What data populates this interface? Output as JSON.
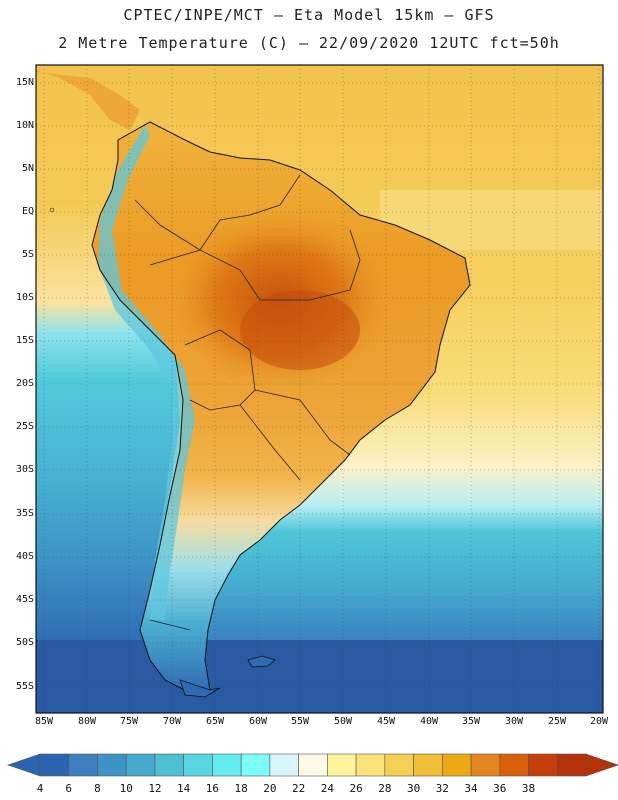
{
  "title": {
    "line1": "CPTEC/INPE/MCT –  Eta Model 15km – GFS",
    "line2": "2 Metre Temperature (C) – 22/09/2020 12UTC fct=50h"
  },
  "lat_labels": [
    "15N",
    "10N",
    "5N",
    "EQ",
    "5S",
    "10S",
    "15S",
    "20S",
    "25S",
    "30S",
    "35S",
    "40S",
    "45S",
    "50S",
    "55S"
  ],
  "lon_labels": [
    "85W",
    "80W",
    "75W",
    "70W",
    "65W",
    "60W",
    "55W",
    "50W",
    "45W",
    "40W",
    "35W",
    "30W",
    "25W",
    "20W"
  ],
  "colorbar": {
    "ticks": [
      "4",
      "6",
      "8",
      "10",
      "12",
      "14",
      "16",
      "18",
      "20",
      "22",
      "24",
      "26",
      "28",
      "30",
      "32",
      "34",
      "36",
      "38"
    ],
    "colors": [
      "#2b64b0",
      "#3d7fc0",
      "#3d93c6",
      "#46a8cc",
      "#4fbfd4",
      "#58d5e0",
      "#63ebee",
      "#7cfcf8",
      "#d8f6fb",
      "#fdf9e4",
      "#fdf39a",
      "#fbe37b",
      "#f5cf53",
      "#f0bd36",
      "#ebaa13",
      "#e38620",
      "#da5f0c",
      "#c43f09",
      "#b5320a"
    ]
  },
  "map": {
    "ocean_color": "#46b8d4",
    "land_warm": "#ec9c25",
    "land_hot": "#d2610f",
    "cold_south": "#2f6bb4"
  }
}
